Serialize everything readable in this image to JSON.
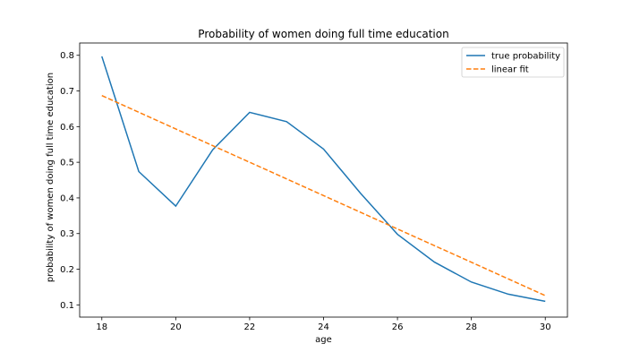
{
  "chart_data": {
    "type": "line",
    "title": "Probability of women doing full time education",
    "xlabel": "age",
    "ylabel": "probability of women doing full time education",
    "xlim": [
      17.4,
      30.6
    ],
    "ylim": [
      0.0657,
      0.8345
    ],
    "x_ticks": [
      18,
      20,
      22,
      24,
      26,
      28,
      30
    ],
    "y_ticks": [
      0.1,
      0.2,
      0.3,
      0.4,
      0.5,
      0.6,
      0.7,
      0.8
    ],
    "grid": false,
    "legend_position": "top-right",
    "series": [
      {
        "name": "true probability",
        "style": "solid",
        "color": "#1f77b4",
        "x": [
          18,
          19,
          20,
          21,
          22,
          23,
          24,
          25,
          26,
          27,
          28,
          29,
          30
        ],
        "y": [
          0.797,
          0.474,
          0.377,
          0.535,
          0.64,
          0.614,
          0.537,
          0.413,
          0.298,
          0.22,
          0.164,
          0.13,
          0.11
        ]
      },
      {
        "name": "linear fit",
        "style": "dashed",
        "color": "#ff7f0e",
        "x": [
          18,
          30
        ],
        "y": [
          0.687,
          0.126
        ]
      }
    ]
  }
}
